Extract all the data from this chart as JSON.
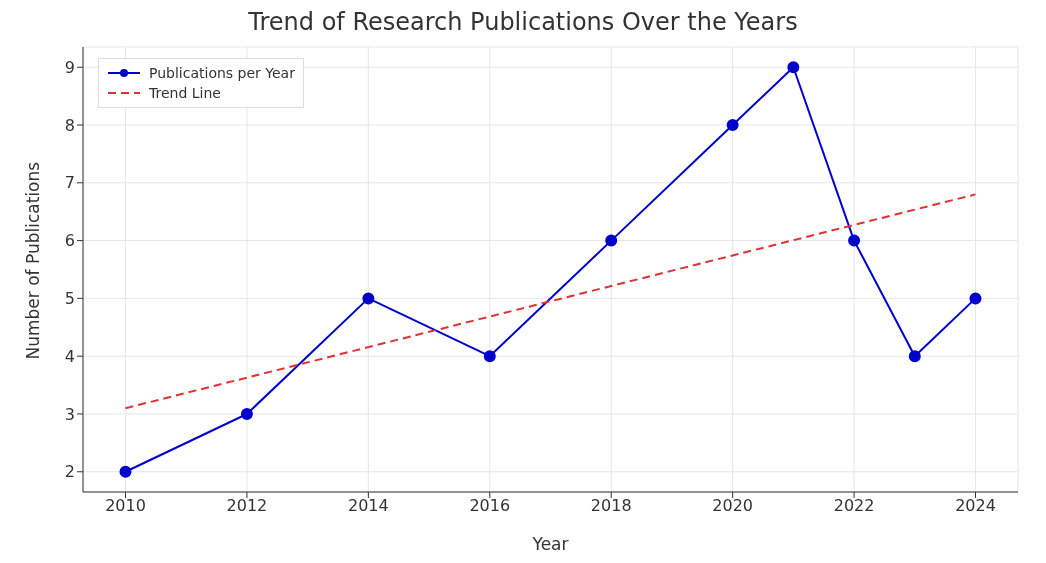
{
  "chart_data": {
    "type": "line",
    "title": "Trend of Research Publications Over the Years",
    "xlabel": "Year",
    "ylabel": "Number of Publications",
    "series": [
      {
        "name": "Publications per Year",
        "color": "#0000cc",
        "x": [
          2010,
          2012,
          2014,
          2016,
          2018,
          2020,
          2021,
          2022,
          2023,
          2024
        ],
        "values": [
          2,
          3,
          5,
          4,
          6,
          8,
          9,
          6,
          4,
          5
        ],
        "marker": "circle",
        "line_style": "solid"
      },
      {
        "name": "Trend Line",
        "color": "#dd3333",
        "x": [
          2010,
          2024
        ],
        "values": [
          3.1,
          6.8
        ],
        "marker": "none",
        "line_style": "dashed"
      }
    ],
    "xlim": [
      2009.3,
      2024.7
    ],
    "xticks": [
      2010,
      2012,
      2014,
      2016,
      2018,
      2020,
      2022,
      2024
    ],
    "ylim": [
      1.65,
      9.35
    ],
    "yticks": [
      2,
      3,
      4,
      5,
      6,
      7,
      8,
      9
    ],
    "grid": true,
    "legend": "top left"
  }
}
